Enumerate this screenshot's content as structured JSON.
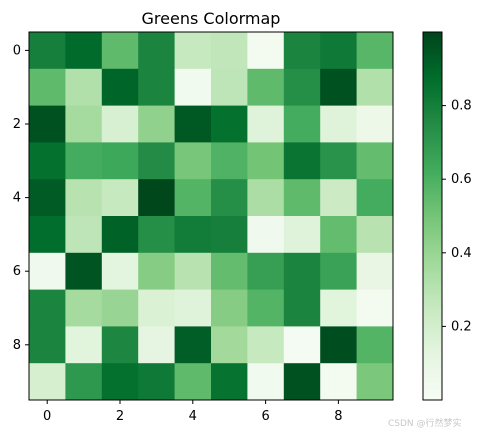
{
  "chart_data": {
    "type": "heatmap",
    "title": "Greens Colormap",
    "colormap": "Greens",
    "x_ticks": [
      0,
      2,
      4,
      6,
      8
    ],
    "y_ticks": [
      0,
      2,
      4,
      6,
      8
    ],
    "colorbar_ticks": [
      0.2,
      0.4,
      0.6,
      0.8
    ],
    "colorbar_range": [
      0.0,
      1.0
    ],
    "rows": 10,
    "cols": 10,
    "values": [
      [
        0.8,
        0.88,
        0.55,
        0.78,
        0.25,
        0.27,
        0.03,
        0.78,
        0.82,
        0.57
      ],
      [
        0.55,
        0.32,
        0.9,
        0.78,
        0.04,
        0.28,
        0.55,
        0.74,
        0.96,
        0.32
      ],
      [
        0.96,
        0.36,
        0.18,
        0.42,
        0.94,
        0.86,
        0.15,
        0.62,
        0.15,
        0.07
      ],
      [
        0.86,
        0.62,
        0.64,
        0.75,
        0.49,
        0.59,
        0.5,
        0.84,
        0.72,
        0.54
      ],
      [
        0.93,
        0.3,
        0.25,
        0.99,
        0.58,
        0.74,
        0.34,
        0.55,
        0.23,
        0.62
      ],
      [
        0.87,
        0.28,
        0.91,
        0.74,
        0.81,
        0.8,
        0.05,
        0.15,
        0.54,
        0.3
      ],
      [
        0.05,
        0.95,
        0.13,
        0.45,
        0.3,
        0.54,
        0.67,
        0.78,
        0.66,
        0.1
      ],
      [
        0.78,
        0.36,
        0.4,
        0.17,
        0.15,
        0.45,
        0.58,
        0.78,
        0.14,
        0.03
      ],
      [
        0.78,
        0.14,
        0.77,
        0.12,
        0.92,
        0.37,
        0.25,
        0.02,
        0.97,
        0.58
      ],
      [
        0.19,
        0.7,
        0.86,
        0.82,
        0.55,
        0.85,
        0.04,
        0.96,
        0.03,
        0.48
      ]
    ]
  },
  "watermark_text": "CSDN @行然梦实"
}
